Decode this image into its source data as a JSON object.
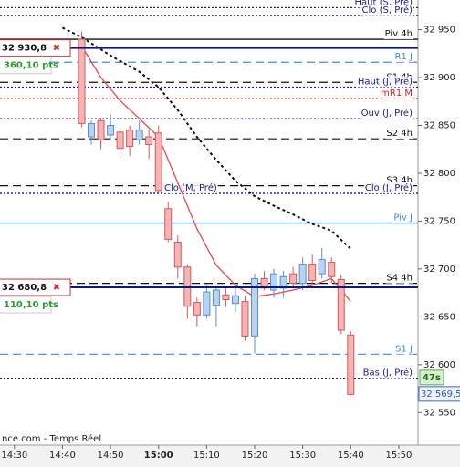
{
  "chart_data": {
    "type": "candlestick",
    "source": "nce.com - Temps Réel",
    "x": [
      "14:44",
      "14:46",
      "14:48",
      "14:50",
      "14:52",
      "14:54",
      "14:56",
      "14:58",
      "15:00",
      "15:02",
      "15:04",
      "15:06",
      "15:08",
      "15:10",
      "15:12",
      "15:14",
      "15:16",
      "15:18",
      "15:20",
      "15:22",
      "15:24",
      "15:26",
      "15:28",
      "15:30",
      "15:32",
      "15:34",
      "15:36",
      "15:38",
      "15:40"
    ],
    "open": [
      32940,
      32838,
      32855,
      32840,
      32843,
      32845,
      32835,
      32838,
      32842,
      32763,
      32728,
      32702,
      32665,
      32652,
      32662,
      32673,
      32664,
      32666,
      32630,
      32690,
      32678,
      32680,
      32695,
      32685,
      32705,
      32695,
      32707,
      32689,
      32631
    ],
    "high": [
      32948,
      32855,
      32858,
      32862,
      32848,
      32850,
      32855,
      32845,
      32850,
      32770,
      32735,
      32705,
      32670,
      32685,
      32682,
      32680,
      32680,
      32672,
      32695,
      32698,
      32700,
      32698,
      32702,
      32712,
      32715,
      32722,
      32712,
      32694,
      32635
    ],
    "low": [
      32848,
      32830,
      32825,
      32835,
      32820,
      32818,
      32830,
      32815,
      32778,
      32728,
      32690,
      32648,
      32640,
      32648,
      32640,
      32660,
      32655,
      32625,
      32612,
      32678,
      32670,
      32670,
      32680,
      32678,
      32682,
      32690,
      32685,
      32632,
      32568
    ],
    "close": [
      32852,
      32852,
      32835,
      32850,
      32826,
      32828,
      32845,
      32830,
      32782,
      32731,
      32702,
      32661,
      32652,
      32676,
      32678,
      32668,
      32672,
      32630,
      32690,
      32680,
      32695,
      32692,
      32685,
      32705,
      32688,
      32710,
      32692,
      32636,
      32569
    ],
    "up_color": "#b8d4f0",
    "up_edge": "#5a8cc8",
    "down_color": "#f6b4b4",
    "down_edge": "#d05a5a",
    "lines": [
      {
        "color": "#111111",
        "style": "dotted",
        "x": [
          "14:40",
          "14:44",
          "14:50",
          "14:56",
          "15:00",
          "15:04",
          "15:08",
          "15:12",
          "15:16",
          "15:20",
          "15:24",
          "15:28",
          "15:32",
          "15:36",
          "15:40"
        ],
        "values": [
          32952,
          32942,
          32923,
          32906,
          32890,
          32866,
          32838,
          32814,
          32792,
          32776,
          32766,
          32757,
          32747,
          32740,
          32721
        ]
      },
      {
        "color": "#e84a4a",
        "style": "solid",
        "x": [
          "14:44",
          "14:48",
          "14:52",
          "14:56",
          "15:00",
          "15:04",
          "15:08",
          "15:12",
          "15:16",
          "15:20",
          "15:24",
          "15:28",
          "15:32",
          "15:36",
          "15:40"
        ],
        "values": [
          32933,
          32900,
          32876,
          32857,
          32838,
          32790,
          32742,
          32704,
          32683,
          32671,
          32674,
          32678,
          32683,
          32690,
          32666
        ]
      }
    ],
    "levels": [
      {
        "label": "Haut (S, Pré)",
        "value": 32973,
        "color": "#1a1a9a",
        "style": "dotted"
      },
      {
        "label": "Clo (S, Pré)",
        "value": 32965,
        "color": "#1a1a9a",
        "style": "dotted"
      },
      {
        "label": "Piv 4h",
        "value": 32940,
        "color": "#111111",
        "style": "solid"
      },
      {
        "label": "R1 J",
        "value": 32916,
        "color": "#3a8ee6",
        "style": "dashed"
      },
      {
        "label": "S1 4h",
        "value": 32895,
        "color": "#111111",
        "style": "dashed"
      },
      {
        "label": "Haut (J, Pré)",
        "value": 32890,
        "color": "#1a1a9a",
        "style": "dotted"
      },
      {
        "label": "mR1 M",
        "value": 32878,
        "color": "#c82020",
        "style": "dotted"
      },
      {
        "label": "Ouv (J, Pré)",
        "value": 32857,
        "color": "#1a1a9a",
        "style": "dotted"
      },
      {
        "label": "S2 4h",
        "value": 32836,
        "color": "#111111",
        "style": "dashed"
      },
      {
        "label": "S3 4h",
        "value": 32787,
        "color": "#111111",
        "style": "dashed"
      },
      {
        "label": "Clo (J, Pré)",
        "value": 32779,
        "color": "#1a1a9a",
        "style": "dotted"
      },
      {
        "label": "Clo (M, Pré)",
        "value": 32779,
        "color": "#1a1a9a",
        "style": "dotted"
      },
      {
        "label": "Piv J",
        "value": 32748,
        "color": "#3a8ee6",
        "style": "solid"
      },
      {
        "label": "S4 4h",
        "value": 32685,
        "color": "#111111",
        "style": "dashed"
      },
      {
        "label": "S1 J",
        "value": 32611,
        "color": "#3a8ee6",
        "style": "dashed"
      },
      {
        "label": "Bas (J, Pré)",
        "value": 32586,
        "color": "#1a1a9a",
        "style": "dotted"
      }
    ],
    "positions": [
      {
        "value": 32930.8,
        "label": "32 930,8",
        "pnl": "360,10 pts"
      },
      {
        "value": 32680.8,
        "label": "32 680,8",
        "pnl": "110,10 pts"
      }
    ],
    "timer": "47s",
    "last": {
      "value": 32569.5,
      "label": "32 569,5"
    },
    "xlim": [
      "14:27",
      "15:54"
    ],
    "xticks": [
      "14:30",
      "14:40",
      "14:50",
      "15:00",
      "15:10",
      "15:20",
      "15:30",
      "15:40",
      "15:50"
    ],
    "xtick_bold": "15:00",
    "ylim": [
      32516,
      32981
    ],
    "yticks": [
      {
        "value": 32950,
        "label": "32 950"
      },
      {
        "value": 32900,
        "label": "32 900"
      },
      {
        "value": 32850,
        "label": "32 850"
      },
      {
        "value": 32800,
        "label": "32 800"
      },
      {
        "value": 32750,
        "label": "32 750"
      },
      {
        "value": 32700,
        "label": "32 700"
      },
      {
        "value": 32650,
        "label": "32 650"
      },
      {
        "value": 32600,
        "label": "32 600"
      },
      {
        "value": 32550,
        "label": "32 550"
      }
    ]
  }
}
